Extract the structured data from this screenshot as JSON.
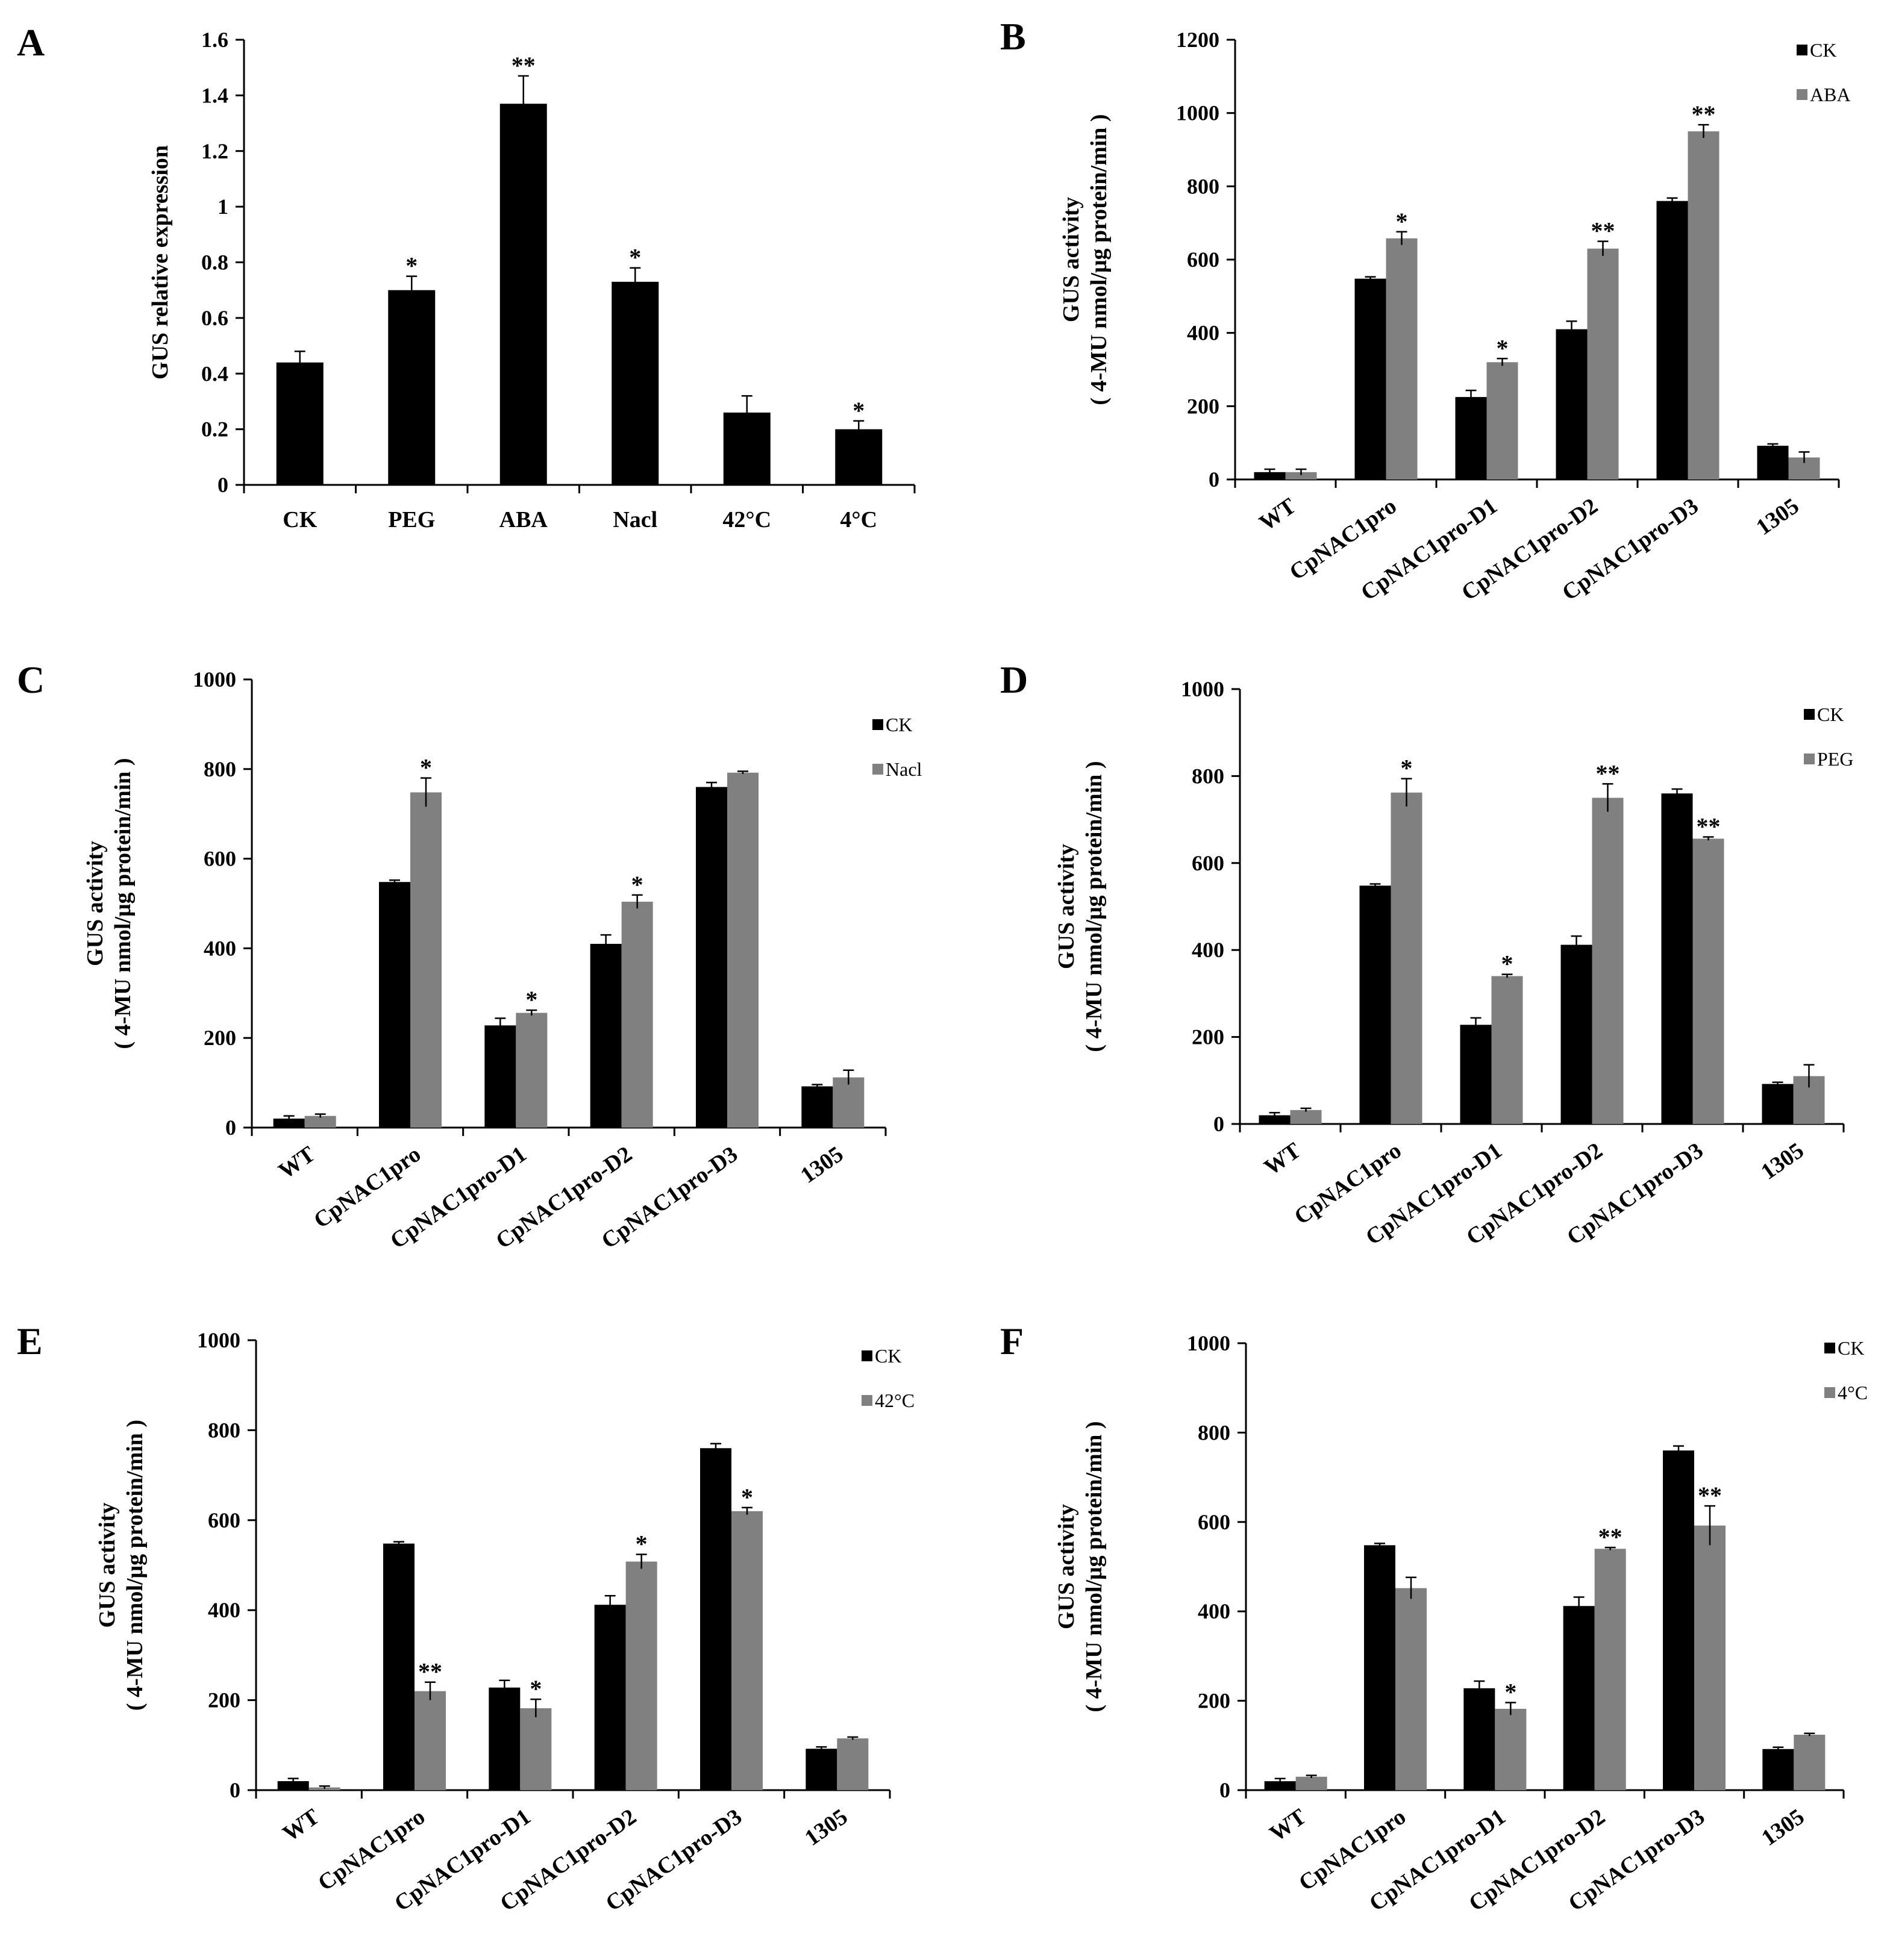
{
  "colors": {
    "ck": "#000000",
    "treatment": "#808080",
    "axis": "#000000"
  },
  "chart_data": [
    {
      "panel": "A",
      "type": "bar",
      "ylabel": "GUS  relative  expression",
      "ylim": [
        0,
        1.6
      ],
      "yticks": [
        "0",
        "0.2",
        "0.4",
        "0.6",
        "0.8",
        "1",
        "1.2",
        "1.4",
        "1.6"
      ],
      "categories": [
        "CK",
        "PEG",
        "ABA",
        "Nacl",
        "42°C",
        "4°C"
      ],
      "series": [
        {
          "name": "",
          "color": "#000000",
          "values": [
            0.44,
            0.7,
            1.37,
            0.73,
            0.26,
            0.2
          ],
          "errors": [
            0.04,
            0.05,
            0.1,
            0.05,
            0.06,
            0.03
          ],
          "sig": [
            "",
            "*",
            "**",
            "*",
            "",
            "*"
          ]
        }
      ]
    },
    {
      "panel": "B",
      "type": "bar",
      "ylabel": "GUS activity",
      "ylabel2": "( 4-MU nmol/μg protein/min )",
      "ylim": [
        0,
        1200
      ],
      "yticks": [
        "0",
        "200",
        "400",
        "600",
        "800",
        "1000",
        "1200"
      ],
      "categories": [
        "WT",
        "CpNAC1pro",
        "CpNAC1pro-D1",
        "CpNAC1pro-D2",
        "CpNAC1pro-D3",
        "1305"
      ],
      "legend": [
        "CK",
        "ABA"
      ],
      "series": [
        {
          "name": "CK",
          "color": "#000000",
          "values": [
            20,
            548,
            225,
            410,
            760,
            92
          ],
          "errors": [
            8,
            5,
            18,
            22,
            8,
            5
          ],
          "sig": [
            "",
            "",
            "",
            "",
            "",
            ""
          ]
        },
        {
          "name": "ABA",
          "color": "#808080",
          "values": [
            20,
            658,
            320,
            630,
            950,
            60
          ],
          "errors": [
            8,
            18,
            10,
            20,
            18,
            15
          ],
          "sig": [
            "",
            "*",
            "*",
            "**",
            "**",
            ""
          ]
        }
      ]
    },
    {
      "panel": "C",
      "type": "bar",
      "ylabel": "GUS activity",
      "ylabel2": "( 4-MU nmol/μg protein/min )",
      "ylim": [
        0,
        1000
      ],
      "yticks": [
        "0",
        "200",
        "400",
        "600",
        "800",
        "1000"
      ],
      "categories": [
        "WT",
        "CpNAC1pro",
        "CpNAC1pro-D1",
        "CpNAC1pro-D2",
        "CpNAC1pro-D3",
        "1305"
      ],
      "legend": [
        "CK",
        "Nacl"
      ],
      "series": [
        {
          "name": "CK",
          "color": "#000000",
          "values": [
            20,
            548,
            228,
            410,
            760,
            92
          ],
          "errors": [
            6,
            4,
            16,
            20,
            10,
            4
          ],
          "sig": [
            "",
            "",
            "",
            "",
            "",
            ""
          ]
        },
        {
          "name": "Nacl",
          "color": "#808080",
          "values": [
            26,
            748,
            256,
            504,
            792,
            112
          ],
          "errors": [
            4,
            32,
            6,
            15,
            3,
            16
          ],
          "sig": [
            "",
            "*",
            "*",
            "*",
            "",
            ""
          ]
        }
      ]
    },
    {
      "panel": "D",
      "type": "bar",
      "ylabel": "GUS activity",
      "ylabel2": "( 4-MU nmol/μg protein/min )",
      "ylim": [
        0,
        1000
      ],
      "yticks": [
        "0",
        "200",
        "400",
        "600",
        "800",
        "1000"
      ],
      "categories": [
        "WT",
        "CpNAC1pro",
        "CpNAC1pro-D1",
        "CpNAC1pro-D2",
        "CpNAC1pro-D3",
        "1305"
      ],
      "legend": [
        "CK",
        "PEG"
      ],
      "series": [
        {
          "name": "CK",
          "color": "#000000",
          "values": [
            20,
            548,
            228,
            412,
            760,
            92
          ],
          "errors": [
            6,
            4,
            16,
            20,
            10,
            4
          ],
          "sig": [
            "",
            "",
            "",
            "",
            "",
            ""
          ]
        },
        {
          "name": "PEG",
          "color": "#808080",
          "values": [
            32,
            762,
            340,
            750,
            656,
            110
          ],
          "errors": [
            4,
            32,
            4,
            32,
            4,
            26
          ],
          "sig": [
            "",
            "*",
            "*",
            "**",
            "**",
            ""
          ]
        }
      ]
    },
    {
      "panel": "E",
      "type": "bar",
      "ylabel": "GUS activity",
      "ylabel2": "( 4-MU nmol/μg protein/min )",
      "ylim": [
        0,
        1000
      ],
      "yticks": [
        "0",
        "200",
        "400",
        "600",
        "800",
        "1000"
      ],
      "categories": [
        "WT",
        "CpNAC1pro",
        "CpNAC1pro-D1",
        "CpNAC1pro-D2",
        "CpNAC1pro-D3",
        "1305"
      ],
      "legend": [
        "CK",
        "42°C"
      ],
      "series": [
        {
          "name": "CK",
          "color": "#000000",
          "values": [
            20,
            548,
            228,
            412,
            760,
            92
          ],
          "errors": [
            6,
            4,
            16,
            20,
            10,
            4
          ],
          "sig": [
            "",
            "",
            "",
            "",
            "",
            ""
          ]
        },
        {
          "name": "42°C",
          "color": "#808080",
          "values": [
            6,
            220,
            182,
            508,
            620,
            115
          ],
          "errors": [
            3,
            20,
            20,
            16,
            8,
            3
          ],
          "sig": [
            "",
            "**",
            "*",
            "*",
            "*",
            ""
          ]
        }
      ]
    },
    {
      "panel": "F",
      "type": "bar",
      "ylabel": "GUS activity",
      "ylabel2": "( 4-MU nmol/μg protein/min )",
      "ylim": [
        0,
        1000
      ],
      "yticks": [
        "0",
        "200",
        "400",
        "600",
        "800",
        "1000"
      ],
      "categories": [
        "WT",
        "CpNAC1pro",
        "CpNAC1pro-D1",
        "CpNAC1pro-D2",
        "CpNAC1pro-D3",
        "1305"
      ],
      "legend": [
        "CK",
        "4°C"
      ],
      "series": [
        {
          "name": "CK",
          "color": "#000000",
          "values": [
            20,
            548,
            228,
            412,
            760,
            92
          ],
          "errors": [
            6,
            4,
            16,
            20,
            10,
            4
          ],
          "sig": [
            "",
            "",
            "",
            "",
            "",
            ""
          ]
        },
        {
          "name": "4°C",
          "color": "#808080",
          "values": [
            30,
            452,
            182,
            540,
            592,
            124
          ],
          "errors": [
            3,
            24,
            14,
            3,
            44,
            3
          ],
          "sig": [
            "",
            "",
            "*",
            "**",
            "**",
            ""
          ]
        }
      ]
    }
  ]
}
